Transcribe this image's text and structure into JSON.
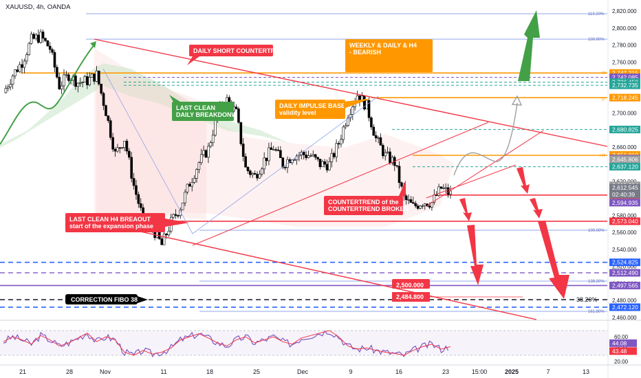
{
  "header": {
    "title": "XAUUSD, 4h, OANDA"
  },
  "chart_data": {
    "type": "line",
    "symbol": "XAUUSD",
    "timeframe": "4h",
    "source": "OANDA",
    "ylim": [
      2460,
      2830
    ],
    "x_tick_labels": [
      "21",
      "28",
      "Nov",
      "11",
      "18",
      "25",
      "Dec",
      "9",
      "16",
      "23",
      "15:00",
      "2025",
      "7",
      "13"
    ],
    "y_tick_labels": [
      "2,460.000",
      "2,480.000",
      "2,500.000",
      "2,520.000",
      "2,540.000",
      "2,560.000",
      "2,580.000",
      "2,600.000",
      "2,620.000",
      "2,640.000",
      "2,660.000",
      "2,680.000",
      "2,700.000",
      "2,720.000",
      "2,740.000",
      "2,760.000",
      "2,780.000",
      "2,800.000",
      "2,820.000"
    ],
    "price_path": [
      2724,
      2745,
      2760,
      2786,
      2790,
      2776,
      2732,
      2745,
      2736,
      2738,
      2745,
      2702,
      2652,
      2670,
      2615,
      2575,
      2565,
      2545,
      2572,
      2590,
      2618,
      2642,
      2658,
      2700,
      2715,
      2700,
      2635,
      2626,
      2645,
      2660,
      2640,
      2650,
      2652,
      2650,
      2640,
      2640,
      2665,
      2700,
      2722,
      2708,
      2670,
      2650,
      2642,
      2600,
      2590,
      2596,
      2595,
      2612,
      2605
    ],
    "horizontal_levels": [
      {
        "value": 2747.215,
        "label": "2,747.215",
        "color": "#ff9800"
      },
      {
        "value": 2742.085,
        "label": "2,742.085",
        "color": "#7e57c2"
      },
      {
        "value": 2736.45,
        "label": "2,736.450",
        "color": "#26a69a"
      },
      {
        "value": 2732.735,
        "label": "2,732.735",
        "color": "#26a69a"
      },
      {
        "value": 2718.245,
        "label": "2,718.245",
        "color": "#ff9800"
      },
      {
        "value": 2680.825,
        "label": "2,680.825",
        "color": "#26a69a"
      },
      {
        "value": 2651.01,
        "label": "2,651.010",
        "color": "#ff9800"
      },
      {
        "value": 2646.715,
        "label": "2,646.715",
        "color": "#7e57c2"
      },
      {
        "value": 2645.806,
        "label": "2,645.806",
        "color": "#9e9e9e"
      },
      {
        "value": 2637.12,
        "label": "2,637.120",
        "color": "#26a69a"
      },
      {
        "value": 2615.224,
        "label": "2,615.224",
        "color": "#9e9e9e"
      },
      {
        "value": 2612.545,
        "label": "2,612.545",
        "color": "#787b86"
      },
      {
        "value": 2603.85,
        "label": "2,603.850",
        "color": "#f23645"
      },
      {
        "value": 2594.935,
        "label": "2,594.935",
        "color": "#7e57c2"
      },
      {
        "value": 2573.04,
        "label": "2,573.040",
        "color": "#f23645"
      },
      {
        "value": 2524.825,
        "label": "2,524.825",
        "color": "#2962ff"
      },
      {
        "value": 2512.49,
        "label": "2,512.490",
        "color": "#7e57c2"
      },
      {
        "value": 2497.565,
        "label": "2,497.565",
        "color": "#7e57c2"
      },
      {
        "value": 2472.12,
        "label": "2,472.120",
        "color": "#2962ff"
      }
    ],
    "countdown_label": "02:40:39",
    "fib_labels": {
      "top": "113.20%",
      "hundred": "100.00%",
      "lower_hundred": "100.00%",
      "f138": "138.20%",
      "f161": "161.80%"
    },
    "fib_382_label": "38.20%",
    "level_marks": {
      "w": "W",
      "d": "D",
      "h4": "H4"
    },
    "annotations": {
      "daily_short": "DAILY SHORT COUNTERTREND",
      "weekly_bearish_1": "WEEKLY & DAILY & H4",
      "weekly_bearish_2": "- BEARISH",
      "last_clean_daily_1": "LAST CLEAN",
      "last_clean_daily_2": "DAILY BREAKDONW",
      "impulse_base_1": "DAILY IMPULSE BASE",
      "impulse_base_2": "validity level",
      "countertrend_broken_1": "COUNTERTREND of the",
      "countertrend_broken_2": "COUNTERTREND BROKEN",
      "h4_breakout_1": "LAST CLEAN H4 BREAOUT",
      "h4_breakout_2": "start of the expansion phase",
      "target_2500": "2,500.000",
      "target_2484": "2,484.800",
      "correction_fibo": "CORRECTION FIBO 38.2"
    },
    "rsi": {
      "ylim": [
        20,
        80
      ],
      "y_tick_labels": [
        "20.00",
        "40.00",
        "60.00"
      ],
      "values": [
        {
          "label": "44.08",
          "value": 44.08,
          "color": "#7e57c2"
        },
        {
          "label": "43.48",
          "value": 43.48,
          "color": "#f23645"
        }
      ],
      "path": [
        52,
        60,
        55,
        48,
        62,
        55,
        45,
        50,
        58,
        66,
        52,
        60,
        55,
        35,
        30,
        38,
        32,
        35,
        42,
        55,
        60,
        65,
        58,
        50,
        45,
        55,
        60,
        50,
        55,
        60,
        52,
        48,
        58,
        62,
        66,
        70,
        60,
        45,
        40,
        42,
        38,
        35,
        33,
        30,
        38,
        44,
        48,
        40,
        44
      ]
    },
    "colors": {
      "bull": "#26a69a",
      "bear": "#000000",
      "red": "#f23645",
      "orange": "#ff9800",
      "green": "#43a047",
      "blue": "#2962ff",
      "purple": "#7e57c2"
    }
  }
}
